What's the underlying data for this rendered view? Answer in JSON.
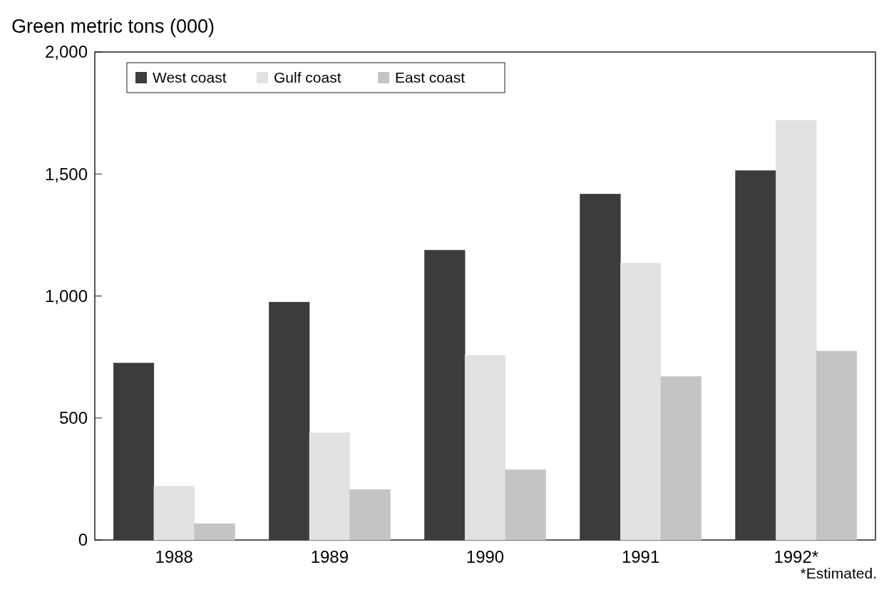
{
  "chart_data": {
    "type": "bar",
    "ylabel": "Green metric tons (000)",
    "categories": [
      "1988",
      "1989",
      "1990",
      "1991",
      "1992*"
    ],
    "series": [
      {
        "name": "West coast",
        "color": "#3c3c3c",
        "values": [
          725,
          975,
          1188,
          1418,
          1514
        ]
      },
      {
        "name": "Gulf coast",
        "color": "#e2e2e2",
        "values": [
          221,
          440,
          757,
          1135,
          1720
        ]
      },
      {
        "name": "East coast",
        "color": "#c4c4c4",
        "values": [
          67,
          207,
          288,
          670,
          774
        ]
      }
    ],
    "ylim": [
      0,
      2000
    ],
    "yticks": [
      {
        "value": 0,
        "label": "0"
      },
      {
        "value": 500,
        "label": "500"
      },
      {
        "value": 1000,
        "label": "1,000"
      },
      {
        "value": 1500,
        "label": "1,500"
      },
      {
        "value": 2000,
        "label": "2,000"
      }
    ],
    "legend": "top left",
    "grid": false,
    "annotations": [
      "*Estimated."
    ]
  }
}
